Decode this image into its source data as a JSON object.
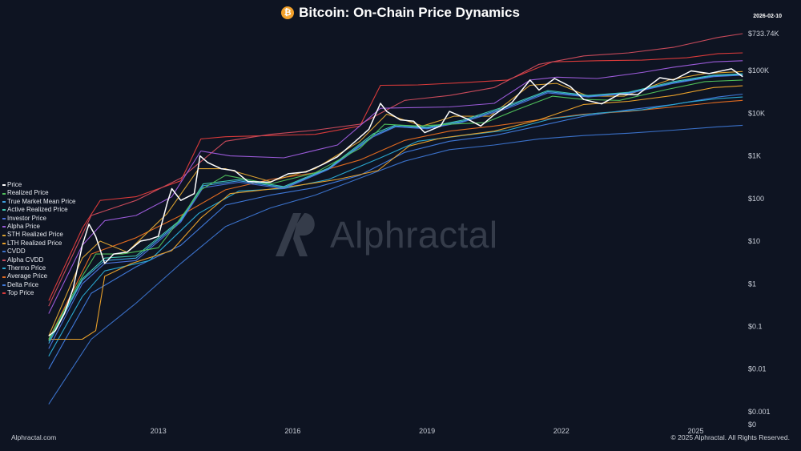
{
  "header": {
    "title": "Bitcoin: On-Chain Price Dynamics",
    "date": "2026-02-10",
    "coin_symbol": "₿"
  },
  "footer": {
    "left": "Alphractal.com",
    "right": "© 2025 Alphractal. All Rights Reserved."
  },
  "watermark": {
    "text": "Alphractal"
  },
  "colors": {
    "background": "#0e1422",
    "price": "#ffffff",
    "accent": "#f2a12b"
  },
  "chart_data": {
    "type": "line",
    "title": "Bitcoin: On-Chain Price Dynamics",
    "y_scale": "log",
    "ylim": [
      0.0005,
      733740
    ],
    "y_ticks": [
      {
        "value": 733740,
        "label": "$733.74K"
      },
      {
        "value": 100000,
        "label": "$100K"
      },
      {
        "value": 10000,
        "label": "$10K"
      },
      {
        "value": 1000,
        "label": "$1K"
      },
      {
        "value": 100,
        "label": "$100"
      },
      {
        "value": 10,
        "label": "$10"
      },
      {
        "value": 1,
        "label": "$1"
      },
      {
        "value": 0.1,
        "label": "$0.1"
      },
      {
        "value": 0.01,
        "label": "$0.01"
      },
      {
        "value": 0.001,
        "label": "$0.001"
      },
      {
        "value": 0.0005,
        "label": "$0"
      }
    ],
    "xlim": [
      2010.5,
      2026.1
    ],
    "x_ticks": [
      {
        "value": 2013,
        "label": "2013"
      },
      {
        "value": 2016,
        "label": "2016"
      },
      {
        "value": 2019,
        "label": "2019"
      },
      {
        "value": 2022,
        "label": "2022"
      },
      {
        "value": 2025,
        "label": "2025"
      }
    ],
    "legend_position": "left",
    "grid": false,
    "series": [
      {
        "name": "Price",
        "color": "#ffffff",
        "x": [
          2010.55,
          2010.7,
          2010.9,
          2011.1,
          2011.3,
          2011.45,
          2011.6,
          2011.8,
          2012.0,
          2012.3,
          2012.6,
          2012.8,
          2013.0,
          2013.2,
          2013.3,
          2013.5,
          2013.8,
          2013.93,
          2014.1,
          2014.4,
          2014.7,
          2015.0,
          2015.5,
          2015.9,
          2016.3,
          2016.7,
          2017.0,
          2017.4,
          2017.7,
          2017.96,
          2018.1,
          2018.4,
          2018.7,
          2018.95,
          2019.3,
          2019.5,
          2019.9,
          2020.2,
          2020.5,
          2020.9,
          2021.3,
          2021.5,
          2021.85,
          2022.2,
          2022.5,
          2022.9,
          2023.3,
          2023.7,
          2024.2,
          2024.5,
          2024.9,
          2025.3,
          2025.8,
          2026.05
        ],
        "y": [
          0.06,
          0.08,
          0.2,
          0.8,
          8,
          25,
          13,
          3,
          5,
          5.5,
          10,
          11,
          13,
          80,
          170,
          90,
          130,
          1000,
          700,
          500,
          450,
          250,
          240,
          380,
          420,
          650,
          950,
          2200,
          4200,
          17000,
          11000,
          7000,
          6500,
          3500,
          5000,
          11000,
          7300,
          5000,
          9200,
          18000,
          60000,
          35000,
          65000,
          42000,
          21000,
          16500,
          28000,
          27000,
          68000,
          60000,
          98000,
          85000,
          110000,
          72000
        ]
      },
      {
        "name": "Realized Price",
        "color": "#4fbf5a",
        "x": [
          2010.55,
          2011.3,
          2011.6,
          2012.2,
          2013.0,
          2013.5,
          2013.95,
          2014.5,
          2015.5,
          2016.5,
          2017.5,
          2018.05,
          2018.8,
          2019.5,
          2020.3,
          2021.0,
          2021.8,
          2022.5,
          2023.3,
          2024.3,
          2025.2,
          2026.05
        ],
        "y": [
          0.05,
          1.5,
          5,
          5,
          7,
          35,
          160,
          350,
          220,
          400,
          1500,
          5500,
          5000,
          5500,
          6000,
          12000,
          25000,
          21000,
          20000,
          35000,
          55000,
          60000
        ]
      },
      {
        "name": "True Market Mean Price",
        "color": "#3fa0e0",
        "x": [
          2010.55,
          2011.3,
          2011.8,
          2012.5,
          2013.5,
          2014.0,
          2014.8,
          2015.8,
          2016.8,
          2017.8,
          2018.3,
          2019.0,
          2019.8,
          2020.8,
          2021.7,
          2022.6,
          2023.5,
          2024.5,
          2025.4,
          2026.05
        ],
        "y": [
          0.04,
          1.2,
          3.5,
          4,
          30,
          200,
          260,
          180,
          500,
          3000,
          5000,
          4500,
          6500,
          14000,
          32000,
          25000,
          30000,
          52000,
          75000,
          80000
        ]
      },
      {
        "name": "Active Realized Price",
        "color": "#40c8b0",
        "x": [
          2010.55,
          2011.3,
          2011.8,
          2012.5,
          2013.5,
          2014.0,
          2014.8,
          2015.8,
          2016.8,
          2017.8,
          2018.3,
          2019.0,
          2019.8,
          2020.8,
          2021.7,
          2022.6,
          2023.5,
          2024.5,
          2025.4,
          2026.05
        ],
        "y": [
          0.045,
          1.3,
          4,
          4.5,
          32,
          220,
          280,
          190,
          520,
          3300,
          5300,
          4700,
          6900,
          15000,
          34000,
          26000,
          31000,
          55000,
          78000,
          84000
        ]
      },
      {
        "name": "Investor Price",
        "color": "#4a6fd8",
        "x": [
          2010.55,
          2011.3,
          2011.8,
          2012.5,
          2013.5,
          2014.0,
          2014.8,
          2015.8,
          2016.8,
          2017.8,
          2018.3,
          2019.0,
          2019.8,
          2020.8,
          2021.7,
          2022.6,
          2023.5,
          2024.5,
          2025.4,
          2026.05
        ],
        "y": [
          0.03,
          1.0,
          3.0,
          3.5,
          28,
          180,
          240,
          170,
          480,
          2800,
          4800,
          4300,
          6200,
          13000,
          30000,
          24000,
          29000,
          50000,
          72000,
          78000
        ]
      },
      {
        "name": "Alpha Price",
        "color": "#9a5ad8",
        "x": [
          2010.55,
          2011.3,
          2011.8,
          2012.5,
          2013.3,
          2013.95,
          2014.6,
          2015.8,
          2017.0,
          2017.96,
          2018.6,
          2019.5,
          2020.5,
          2021.3,
          2021.9,
          2022.8,
          2023.8,
          2024.5,
          2025.4,
          2026.05
        ],
        "y": [
          0.2,
          8,
          30,
          40,
          110,
          1300,
          1000,
          900,
          1800,
          13000,
          13500,
          14000,
          17000,
          60000,
          70000,
          65000,
          90000,
          120000,
          160000,
          170000
        ]
      },
      {
        "name": "STH Realized Price",
        "color": "#d8a030",
        "x": [
          2010.55,
          2011.3,
          2011.7,
          2012.3,
          2013.2,
          2013.9,
          2014.5,
          2015.5,
          2016.5,
          2017.5,
          2018.1,
          2018.9,
          2019.6,
          2020.4,
          2021.3,
          2021.9,
          2022.6,
          2023.4,
          2024.4,
          2025.2,
          2026.05
        ],
        "y": [
          0.06,
          4,
          10,
          5.5,
          45,
          500,
          500,
          250,
          500,
          2200,
          9500,
          5000,
          8500,
          8500,
          45000,
          50000,
          25000,
          25000,
          60000,
          85000,
          95000
        ]
      },
      {
        "name": "LTH Realized Price",
        "color": "#e8a02a",
        "x": [
          2010.55,
          2011.3,
          2011.6,
          2011.8,
          2012.4,
          2013.3,
          2013.95,
          2014.6,
          2015.8,
          2017.0,
          2017.9,
          2018.6,
          2019.3,
          2020.5,
          2021.5,
          2022.5,
          2023.5,
          2024.5,
          2025.4,
          2026.05
        ],
        "y": [
          0.05,
          0.05,
          0.08,
          1.5,
          3,
          6,
          35,
          130,
          180,
          280,
          450,
          1700,
          2600,
          3800,
          7000,
          16000,
          19000,
          26000,
          40000,
          44000
        ]
      },
      {
        "name": "CVDD",
        "color": "#3a70c8",
        "x": [
          2010.55,
          2011.5,
          2012.5,
          2013.5,
          2014.5,
          2015.5,
          2016.5,
          2017.5,
          2018.5,
          2019.5,
          2020.5,
          2021.5,
          2022.5,
          2023.5,
          2024.5,
          2025.5,
          2026.05
        ],
        "y": [
          0.0015,
          0.05,
          0.35,
          3,
          22,
          60,
          120,
          300,
          750,
          1400,
          1800,
          2500,
          3000,
          3400,
          4000,
          4800,
          5200
        ]
      },
      {
        "name": "Alpha CVDD",
        "color": "#c84a5a",
        "x": [
          2010.55,
          2011.5,
          2012.5,
          2013.5,
          2014.5,
          2015.5,
          2016.5,
          2017.5,
          2018.5,
          2019.5,
          2020.5,
          2021.5,
          2022.5,
          2023.5,
          2024.5,
          2025.5,
          2026.05
        ],
        "y": [
          0.3,
          40,
          90,
          300,
          2200,
          3200,
          4000,
          5500,
          20000,
          26000,
          40000,
          140000,
          220000,
          260000,
          350000,
          600000,
          733740
        ]
      },
      {
        "name": "Thermo Price",
        "color": "#2aa8d0",
        "x": [
          2010.55,
          2011.3,
          2011.8,
          2012.8,
          2013.9,
          2014.8,
          2015.8,
          2016.8,
          2017.96,
          2018.8,
          2019.8,
          2020.8,
          2021.8,
          2022.8,
          2023.8,
          2024.8,
          2025.5,
          2026.05
        ],
        "y": [
          0.02,
          0.5,
          2,
          3.5,
          45,
          150,
          170,
          280,
          900,
          2200,
          3000,
          4000,
          7500,
          10000,
          12000,
          18000,
          22000,
          24000
        ]
      },
      {
        "name": "Average Price",
        "color": "#e06a20",
        "x": [
          2010.55,
          2011.5,
          2012.5,
          2013.5,
          2014.5,
          2015.5,
          2016.5,
          2017.5,
          2018.5,
          2019.5,
          2020.5,
          2021.5,
          2022.5,
          2023.5,
          2024.5,
          2025.5,
          2026.05
        ],
        "y": [
          0.05,
          5,
          12,
          40,
          160,
          280,
          400,
          800,
          2300,
          3800,
          5000,
          7000,
          9500,
          11000,
          14000,
          18000,
          20000
        ]
      },
      {
        "name": "Delta Price",
        "color": "#3f78d8",
        "x": [
          2010.55,
          2011.5,
          2012.5,
          2013.5,
          2014.5,
          2015.5,
          2016.5,
          2017.5,
          2018.5,
          2019.5,
          2020.5,
          2021.5,
          2022.5,
          2023.5,
          2024.5,
          2025.5,
          2026.05
        ],
        "y": [
          0.01,
          0.6,
          2.5,
          8,
          70,
          120,
          180,
          350,
          1200,
          2200,
          3000,
          5000,
          8500,
          12000,
          16000,
          24000,
          28000
        ]
      },
      {
        "name": "Top Price",
        "color": "#d83a3a",
        "x": [
          2010.55,
          2011.3,
          2011.7,
          2012.5,
          2013.5,
          2013.95,
          2014.5,
          2015.5,
          2016.5,
          2017.5,
          2017.96,
          2018.8,
          2019.8,
          2020.8,
          2021.8,
          2022.8,
          2023.8,
          2024.8,
          2025.5,
          2026.05
        ],
        "y": [
          0.4,
          20,
          90,
          110,
          260,
          2500,
          2800,
          3000,
          3200,
          5000,
          45000,
          46000,
          52000,
          60000,
          160000,
          170000,
          175000,
          200000,
          250000,
          260000
        ]
      }
    ]
  }
}
